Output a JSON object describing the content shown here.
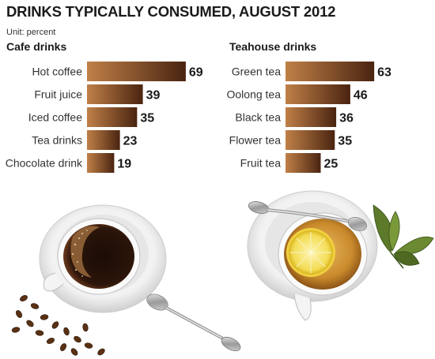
{
  "title": "DRINKS TYPICALLY CONSUMED, AUGUST 2012",
  "unit": "Unit: percent",
  "colors": {
    "bar_dark": "#4a2410",
    "bar_light": "#c08048",
    "text": "#1a1a1a"
  },
  "chart_data": [
    {
      "type": "bar",
      "orientation": "horizontal",
      "title": "Cafe drinks",
      "categories": [
        "Hot coffee",
        "Fruit juice",
        "Iced coffee",
        "Tea drinks",
        "Chocolate drink"
      ],
      "values": [
        69,
        39,
        35,
        23,
        19
      ],
      "unit": "percent",
      "data_labels": true,
      "grid": false
    },
    {
      "type": "bar",
      "orientation": "horizontal",
      "title": "Teahouse drinks",
      "categories": [
        "Green tea",
        "Oolong tea",
        "Black tea",
        "Flower tea",
        "Fruit tea"
      ],
      "values": [
        63,
        46,
        36,
        35,
        25
      ],
      "unit": "percent",
      "data_labels": true,
      "grid": false
    }
  ]
}
